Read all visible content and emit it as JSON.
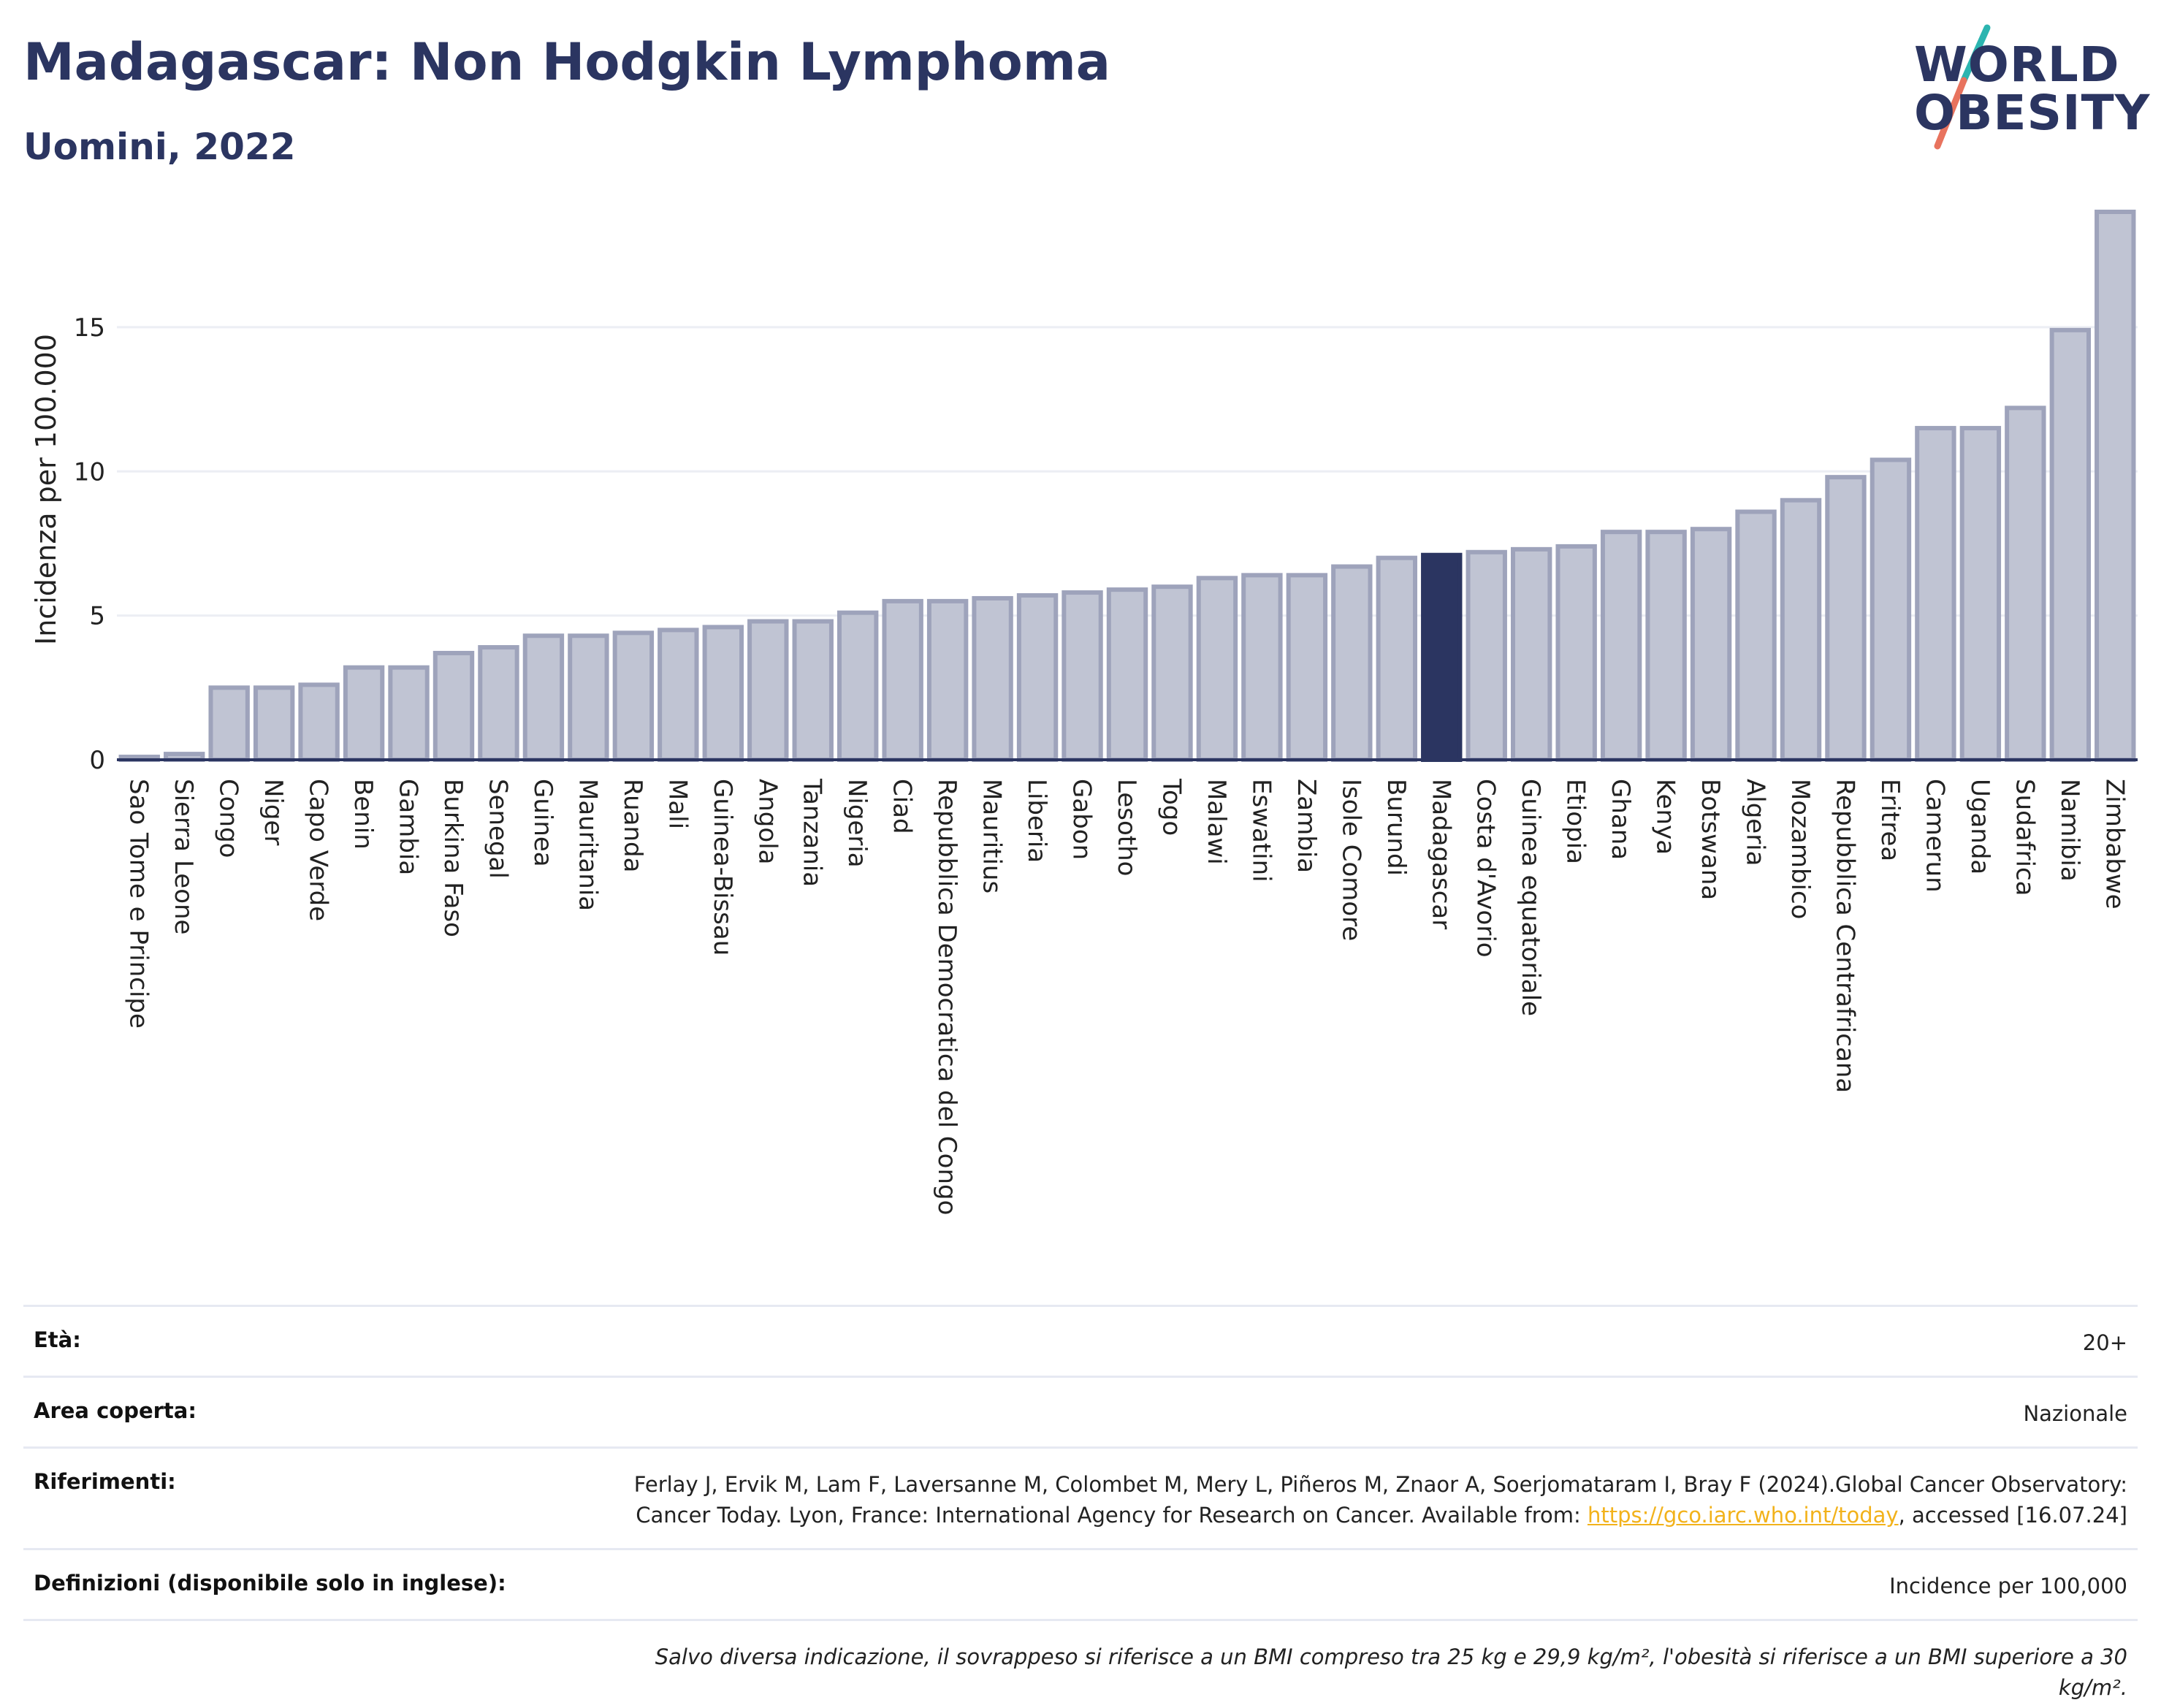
{
  "header": {
    "title": "Madagascar: Non Hodgkin Lymphoma",
    "subtitle": "Uomini, 2022"
  },
  "logo": {
    "line1": "WORLD",
    "line2": "OBESITY",
    "colors": {
      "text": "#2b3561",
      "slash_top": "#2cb5b0",
      "slash_bottom": "#e8735e"
    }
  },
  "chart_data": {
    "type": "bar",
    "title": "Madagascar: Non Hodgkin Lymphoma",
    "subtitle": "Uomini, 2022",
    "xlabel": "",
    "ylabel": "Incidenza per 100.000",
    "ylim": [
      0,
      19
    ],
    "yticks": [
      0,
      5,
      10,
      15
    ],
    "grid": true,
    "highlight": "Madagascar",
    "colors": {
      "bar": "#c0c4d3",
      "bar_edge": "#9ea3bb",
      "highlight": "#2b3561",
      "grid": "#eceef4",
      "axis": "#2b3561"
    },
    "categories": [
      "Sao Tome e Principe",
      "Sierra Leone",
      "Congo",
      "Niger",
      "Capo Verde",
      "Benin",
      "Gambia",
      "Burkina Faso",
      "Senegal",
      "Guinea",
      "Mauritania",
      "Ruanda",
      "Mali",
      "Guinea-Bissau",
      "Angola",
      "Tanzania",
      "Nigeria",
      "Ciad",
      "Repubblica Democratica del Congo",
      "Mauritius",
      "Liberia",
      "Gabon",
      "Lesotho",
      "Togo",
      "Malawi",
      "Eswatini",
      "Zambia",
      "Isole Comore",
      "Burundi",
      "Madagascar",
      "Costa d'Avorio",
      "Guinea equatoriale",
      "Etiopia",
      "Ghana",
      "Kenya",
      "Botswana",
      "Algeria",
      "Mozambico",
      "Repubblica Centrafricana",
      "Eritrea",
      "Camerun",
      "Uganda",
      "Sudafrica",
      "Namibia",
      "Zimbabwe"
    ],
    "values": [
      0.1,
      0.2,
      2.5,
      2.5,
      2.6,
      3.2,
      3.2,
      3.7,
      3.9,
      4.3,
      4.3,
      4.4,
      4.5,
      4.6,
      4.8,
      4.8,
      5.1,
      5.5,
      5.5,
      5.6,
      5.7,
      5.8,
      5.9,
      6.0,
      6.3,
      6.4,
      6.4,
      6.7,
      7.0,
      7.1,
      7.2,
      7.3,
      7.4,
      7.9,
      7.9,
      8.0,
      8.6,
      9.0,
      9.8,
      10.4,
      11.5,
      11.5,
      12.2,
      14.9,
      19.0
    ]
  },
  "info": {
    "rows": [
      {
        "label": "Età:",
        "value": "20+"
      },
      {
        "label": "Area coperta:",
        "value": "Nazionale"
      },
      {
        "label": "Riferimenti:",
        "value_pre": "Ferlay J, Ervik M, Lam F, Laversanne M, Colombet M, Mery L, Piñeros M, Znaor A, Soerjomataram I, Bray F (2024).Global Cancer Observatory: Cancer Today. Lyon, France: International Agency for Research on Cancer. Available from: ",
        "link": "https://gco.iarc.who.int/today",
        "value_post": ", accessed [16.07.24]"
      },
      {
        "label": "Definizioni (disponibile solo in inglese):",
        "value": "Incidence per 100,000"
      }
    ],
    "note": "Salvo diversa indicazione, il sovrappeso si riferisce a un BMI compreso tra 25 kg e 29,9 kg/m², l'obesità si riferisce a un BMI superiore a 30 kg/m²."
  }
}
